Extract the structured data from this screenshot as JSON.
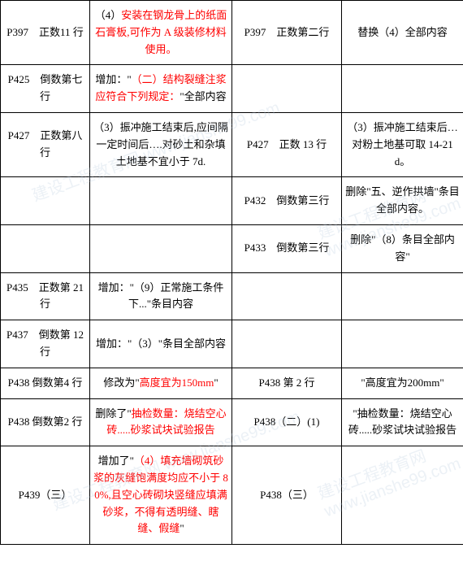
{
  "colors": {
    "text": "#000000",
    "highlight": "#ff0000",
    "border": "#000000",
    "background": "#ffffff",
    "watermark": "rgba(180,200,220,0.25)"
  },
  "watermark_text": "建设工程教育网 www.jianshe99.com",
  "rows": [
    {
      "c1": "P397　正数11 行",
      "c2_pre": "（4）",
      "c2_red": "安装在钢龙骨上的纸面石膏板,可作为 A 级装修材料使用。",
      "c2_post": "",
      "c3": "P397　正数第二行",
      "c4": "替换（4）全部内容"
    },
    {
      "c1": "P425　倒数第七行",
      "c2_pre": "增加：\"",
      "c2_red": "（二）结构裂缝注浆应符合下列规定：",
      "c2_post": "\"全部内容",
      "c3": "",
      "c4": ""
    },
    {
      "c1": "P427　正数第八行",
      "c2_pre": "（3）振冲施工结束后,应间隔一定时间后….对砂土和杂填土地基不宜小于 7d.",
      "c2_red": "",
      "c2_post": "",
      "c3": "P427　正数 13 行",
      "c4": "（3）振冲施工结束后…对粉土地基可取 14-21d。"
    },
    {
      "c1": "",
      "c2_pre": "",
      "c2_red": "",
      "c2_post": "",
      "c3": "P432　倒数第三行",
      "c4": "删除\"五、逆作拱墙\"条目全部内容。"
    },
    {
      "c1": "",
      "c2_pre": "",
      "c2_red": "",
      "c2_post": "",
      "c3": "P433　倒数第三行",
      "c4": "删除\"（8）条目全部内容\""
    },
    {
      "c1": "P435　正数第 21 行",
      "c2_pre": "增加：\"（9）正常施工条件下...\"条目内容",
      "c2_red": "",
      "c2_post": "",
      "c3": "",
      "c4": ""
    },
    {
      "c1": "P437　倒数第 12 行",
      "c2_pre": "增加：\"（3）\"条目全部内容",
      "c2_red": "",
      "c2_post": "",
      "c3": "",
      "c4": ""
    },
    {
      "c1": "P438 倒数第4 行",
      "c2_pre": "修改为\"",
      "c2_red": "高度宜为150mm",
      "c2_post": "\"",
      "c3": "P438 第 2 行",
      "c4": "\"高度宜为200mm\""
    },
    {
      "c1": "P438 倒数第2 行",
      "c2_pre": "删除了\"",
      "c2_red": "抽检数量：烧结空心砖.....砂浆试块试验报告",
      "c2_post": "",
      "c3": "P438（二）(1)",
      "c4": "\"抽检数量：烧结空心砖.....砂浆试块试验报告"
    },
    {
      "c1": "P439（三）",
      "c2_pre": "增加了\"",
      "c2_red": "（4）填充墙砌筑砂浆的灰缝饱满度均应不小于 80%,且空心砖砌块竖缝应填满砂浆，不得有透明缝、瞎缝、假缝",
      "c2_post": "\"",
      "c3": "P438（三）",
      "c4": ""
    }
  ]
}
